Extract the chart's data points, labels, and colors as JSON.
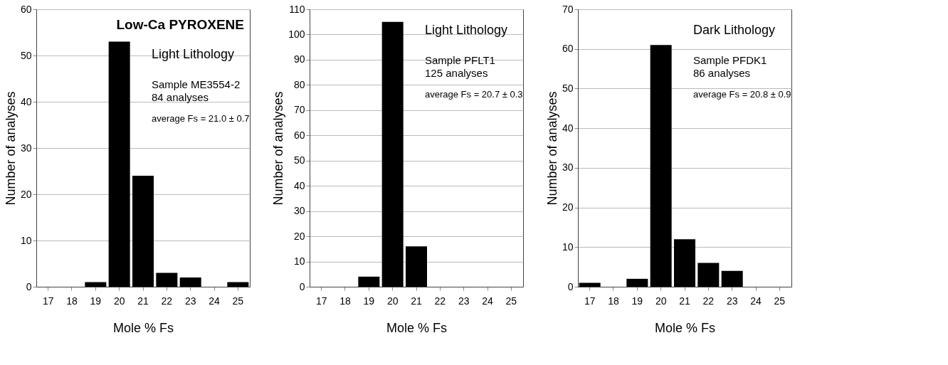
{
  "chart_data": [
    {
      "type": "bar",
      "title": "Low-Ca PYROXENE",
      "annotations": [
        "Light Lithology",
        "Sample ME3554-2",
        "84 analyses",
        "average Fs = 21.0 ± 0.7"
      ],
      "xlabel": "Mole % Fs",
      "ylabel": "Number of analyses",
      "categories": [
        "17",
        "18",
        "19",
        "20",
        "21",
        "22",
        "23",
        "24",
        "25"
      ],
      "values": [
        0,
        0,
        1,
        53,
        24,
        3,
        2,
        0,
        1
      ],
      "color": "#000000",
      "ylim": [
        0,
        60
      ],
      "yticks": [
        0,
        10,
        20,
        30,
        40,
        50,
        60
      ],
      "grid": "y"
    },
    {
      "type": "bar",
      "annotations": [
        "Light Lithology",
        "Sample PFLT1",
        "125 analyses",
        "average Fs = 20.7 ± 0.3"
      ],
      "xlabel": "Mole % Fs",
      "ylabel": "Number of analyses",
      "categories": [
        "17",
        "18",
        "19",
        "20",
        "21",
        "22",
        "23",
        "24",
        "25"
      ],
      "values": [
        0,
        0,
        4,
        105,
        16,
        0,
        0,
        0,
        0
      ],
      "color": "#000000",
      "ylim": [
        0,
        110
      ],
      "yticks": [
        0,
        10,
        20,
        30,
        40,
        50,
        60,
        70,
        80,
        90,
        100,
        110
      ],
      "grid": "y"
    },
    {
      "type": "bar",
      "annotations": [
        "Dark Lithology",
        "Sample PFDK1",
        "86 analyses",
        "average Fs = 20.8 ± 0.9"
      ],
      "xlabel": "Mole % Fs",
      "ylabel": "Number of analyses",
      "categories": [
        "17",
        "18",
        "19",
        "20",
        "21",
        "22",
        "23",
        "24",
        "25"
      ],
      "values": [
        1,
        0,
        2,
        61,
        12,
        6,
        4,
        0,
        0
      ],
      "color": "#000000",
      "ylim": [
        0,
        70
      ],
      "yticks": [
        0,
        10,
        20,
        30,
        40,
        50,
        60,
        70
      ],
      "grid": "y"
    }
  ]
}
